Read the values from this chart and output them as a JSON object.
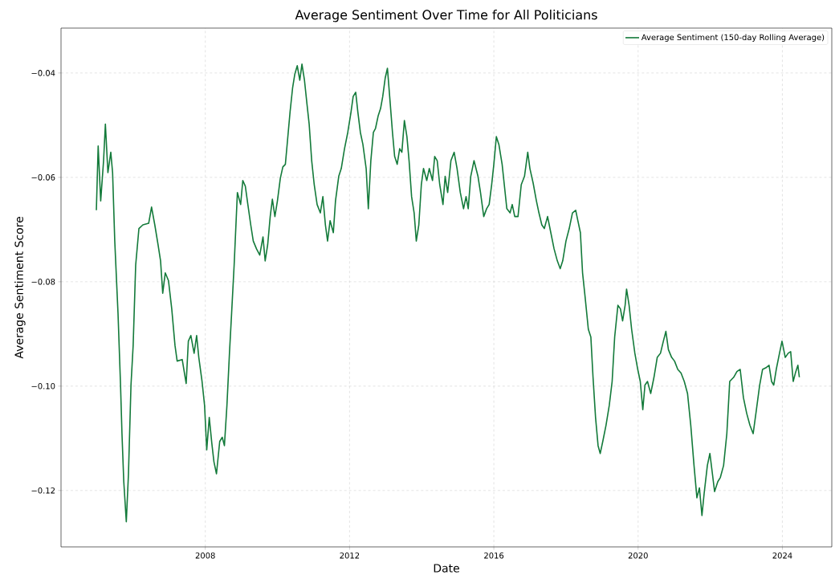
{
  "chart_data": {
    "type": "line",
    "title": "Average Sentiment Over Time for All Politicians",
    "xlabel": "Date",
    "ylabel": "Average Sentiment Score",
    "legend": "top right",
    "grid": true,
    "xlim": [
      2004.0,
      2025.37
    ],
    "ylim": [
      -0.1308,
      -0.0314
    ],
    "xticks": [
      2008,
      2012,
      2016,
      2020,
      2024
    ],
    "yticks": [
      {
        "value": -0.12,
        "label": "−0.12"
      },
      {
        "value": -0.1,
        "label": "−0.10"
      },
      {
        "value": -0.08,
        "label": "−0.08"
      },
      {
        "value": -0.06,
        "label": "−0.06"
      },
      {
        "value": -0.04,
        "label": "−0.04"
      }
    ],
    "x": [
      2004.98,
      2005.03,
      2005.1,
      2005.18,
      2005.23,
      2005.3,
      2005.38,
      2005.43,
      2005.49,
      2005.58,
      2005.65,
      2005.69,
      2005.74,
      2005.81,
      2005.87,
      2005.94,
      2006.0,
      2006.07,
      2006.16,
      2006.27,
      2006.43,
      2006.51,
      2006.6,
      2006.69,
      2006.76,
      2006.82,
      2006.89,
      2006.98,
      2007.07,
      2007.16,
      2007.22,
      2007.36,
      2007.47,
      2007.53,
      2007.6,
      2007.69,
      2007.76,
      2007.82,
      2007.91,
      2007.98,
      2008.04,
      2008.11,
      2008.18,
      2008.24,
      2008.31,
      2008.4,
      2008.47,
      2008.53,
      2008.6,
      2008.67,
      2008.73,
      2008.8,
      2008.89,
      2008.98,
      2009.04,
      2009.11,
      2009.18,
      2009.26,
      2009.33,
      2009.42,
      2009.51,
      2009.6,
      2009.66,
      2009.73,
      2009.8,
      2009.86,
      2009.93,
      2010.0,
      2010.08,
      2010.15,
      2010.22,
      2010.28,
      2010.35,
      2010.42,
      2010.48,
      2010.55,
      2010.62,
      2010.68,
      2010.75,
      2010.82,
      2010.88,
      2010.95,
      2011.02,
      2011.1,
      2011.19,
      2011.26,
      2011.33,
      2011.39,
      2011.46,
      2011.55,
      2011.61,
      2011.7,
      2011.77,
      2011.86,
      2011.95,
      2012.04,
      2012.1,
      2012.17,
      2012.23,
      2012.3,
      2012.37,
      2012.46,
      2012.52,
      2012.59,
      2012.66,
      2012.72,
      2012.79,
      2012.86,
      2012.92,
      2012.99,
      2013.05,
      2013.12,
      2013.19,
      2013.25,
      2013.32,
      2013.39,
      2013.45,
      2013.52,
      2013.59,
      2013.65,
      2013.72,
      2013.79,
      2013.85,
      2013.92,
      2013.99,
      2014.05,
      2014.14,
      2014.21,
      2014.3,
      2014.36,
      2014.43,
      2014.5,
      2014.59,
      2014.65,
      2014.72,
      2014.81,
      2014.9,
      2014.98,
      2015.07,
      2015.16,
      2015.23,
      2015.29,
      2015.36,
      2015.45,
      2015.56,
      2015.63,
      2015.72,
      2015.8,
      2015.87,
      2015.94,
      2016.0,
      2016.07,
      2016.14,
      2016.23,
      2016.29,
      2016.36,
      2016.45,
      2016.51,
      2016.58,
      2016.67,
      2016.76,
      2016.85,
      2016.94,
      2017.0,
      2017.09,
      2017.18,
      2017.25,
      2017.33,
      2017.4,
      2017.49,
      2017.58,
      2017.67,
      2017.76,
      2017.84,
      2017.91,
      2018.0,
      2018.09,
      2018.18,
      2018.27,
      2018.33,
      2018.4,
      2018.46,
      2018.53,
      2018.62,
      2018.69,
      2018.75,
      2018.82,
      2018.89,
      2018.95,
      2019.02,
      2019.11,
      2019.2,
      2019.28,
      2019.35,
      2019.44,
      2019.51,
      2019.57,
      2019.64,
      2019.68,
      2019.75,
      2019.82,
      2019.91,
      2019.99,
      2020.06,
      2020.13,
      2020.19,
      2020.26,
      2020.35,
      2020.44,
      2020.53,
      2020.62,
      2020.7,
      2020.77,
      2020.84,
      2020.93,
      2021.01,
      2021.1,
      2021.19,
      2021.28,
      2021.37,
      2021.46,
      2021.55,
      2021.63,
      2021.7,
      2021.77,
      2021.83,
      2021.92,
      2021.99,
      2022.06,
      2022.12,
      2022.21,
      2022.28,
      2022.37,
      2022.46,
      2022.54,
      2022.65,
      2022.74,
      2022.83,
      2022.92,
      2023.01,
      2023.1,
      2023.19,
      2023.28,
      2023.37,
      2023.45,
      2023.54,
      2023.63,
      2023.7,
      2023.76,
      2023.83,
      2023.92,
      2023.99,
      2024.08,
      2024.16,
      2024.23,
      2024.3,
      2024.36,
      2024.43,
      2024.47
    ],
    "series": [
      {
        "name": "Average Sentiment (150-day Rolling Average)",
        "color": "#137a3a",
        "values": [
          -0.0663,
          -0.054,
          -0.0645,
          -0.0568,
          -0.0498,
          -0.0591,
          -0.0552,
          -0.0591,
          -0.0722,
          -0.086,
          -0.0998,
          -0.1091,
          -0.1183,
          -0.126,
          -0.1168,
          -0.0998,
          -0.0922,
          -0.0768,
          -0.0698,
          -0.0691,
          -0.0688,
          -0.0657,
          -0.0691,
          -0.0729,
          -0.076,
          -0.0822,
          -0.0783,
          -0.0798,
          -0.0852,
          -0.0922,
          -0.0952,
          -0.0949,
          -0.0995,
          -0.0914,
          -0.0903,
          -0.0937,
          -0.0903,
          -0.0945,
          -0.0991,
          -0.1037,
          -0.1122,
          -0.106,
          -0.1109,
          -0.1145,
          -0.1168,
          -0.1106,
          -0.1098,
          -0.1114,
          -0.1037,
          -0.0937,
          -0.086,
          -0.0768,
          -0.0629,
          -0.0652,
          -0.0606,
          -0.0617,
          -0.0652,
          -0.0691,
          -0.0722,
          -0.0737,
          -0.0749,
          -0.0714,
          -0.076,
          -0.0729,
          -0.0675,
          -0.0642,
          -0.0675,
          -0.0645,
          -0.0602,
          -0.058,
          -0.0575,
          -0.0529,
          -0.0475,
          -0.0429,
          -0.0403,
          -0.0386,
          -0.0414,
          -0.0383,
          -0.0414,
          -0.046,
          -0.0498,
          -0.0568,
          -0.0614,
          -0.0652,
          -0.0668,
          -0.0637,
          -0.0691,
          -0.0722,
          -0.0683,
          -0.0706,
          -0.0645,
          -0.0598,
          -0.0583,
          -0.0545,
          -0.0514,
          -0.0475,
          -0.0445,
          -0.0437,
          -0.0475,
          -0.0514,
          -0.0537,
          -0.0583,
          -0.066,
          -0.0568,
          -0.0514,
          -0.0506,
          -0.0483,
          -0.0468,
          -0.0445,
          -0.0409,
          -0.0391,
          -0.0452,
          -0.0514,
          -0.056,
          -0.0575,
          -0.0545,
          -0.0552,
          -0.0491,
          -0.0522,
          -0.0568,
          -0.0637,
          -0.0668,
          -0.0722,
          -0.0691,
          -0.0614,
          -0.0583,
          -0.0606,
          -0.0583,
          -0.0606,
          -0.056,
          -0.0568,
          -0.0614,
          -0.0652,
          -0.0598,
          -0.0629,
          -0.0568,
          -0.0552,
          -0.0583,
          -0.0629,
          -0.066,
          -0.0637,
          -0.066,
          -0.0598,
          -0.0568,
          -0.0598,
          -0.0629,
          -0.0675,
          -0.066,
          -0.0652,
          -0.0614,
          -0.0575,
          -0.0522,
          -0.0537,
          -0.0575,
          -0.0614,
          -0.066,
          -0.0668,
          -0.0652,
          -0.0675,
          -0.0675,
          -0.0614,
          -0.0598,
          -0.0552,
          -0.0583,
          -0.0611,
          -0.0645,
          -0.0668,
          -0.0691,
          -0.0698,
          -0.0675,
          -0.0706,
          -0.0737,
          -0.076,
          -0.0775,
          -0.076,
          -0.0722,
          -0.0698,
          -0.0668,
          -0.0663,
          -0.0683,
          -0.0706,
          -0.0783,
          -0.0829,
          -0.0891,
          -0.0906,
          -0.0983,
          -0.106,
          -0.1114,
          -0.1129,
          -0.1106,
          -0.1075,
          -0.1037,
          -0.0991,
          -0.0906,
          -0.0845,
          -0.0852,
          -0.0875,
          -0.0845,
          -0.0814,
          -0.0845,
          -0.0891,
          -0.0937,
          -0.0968,
          -0.0991,
          -0.1045,
          -0.0998,
          -0.0991,
          -0.1014,
          -0.0983,
          -0.0945,
          -0.0937,
          -0.0914,
          -0.0895,
          -0.093,
          -0.0945,
          -0.0952,
          -0.0968,
          -0.0975,
          -0.0991,
          -0.1014,
          -0.1075,
          -0.1152,
          -0.1214,
          -0.1195,
          -0.1248,
          -0.1206,
          -0.1152,
          -0.1129,
          -0.1168,
          -0.1202,
          -0.1183,
          -0.1175,
          -0.1152,
          -0.1091,
          -0.0991,
          -0.0983,
          -0.0972,
          -0.0968,
          -0.1022,
          -0.1052,
          -0.1075,
          -0.1091,
          -0.1045,
          -0.0998,
          -0.0968,
          -0.0965,
          -0.096,
          -0.0991,
          -0.0998,
          -0.0968,
          -0.0937,
          -0.0914,
          -0.0945,
          -0.0937,
          -0.0934,
          -0.0991,
          -0.0975,
          -0.096,
          -0.0983
        ]
      }
    ]
  }
}
